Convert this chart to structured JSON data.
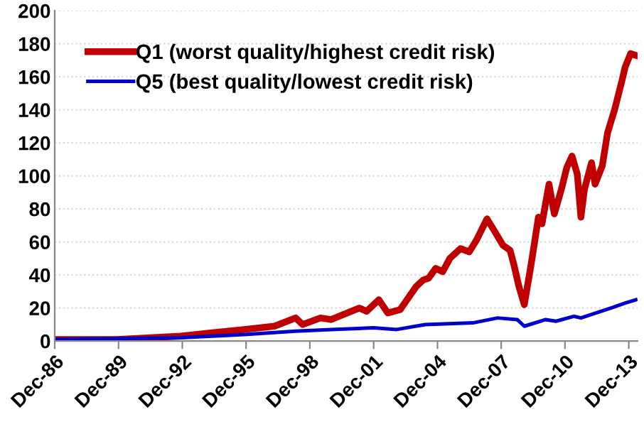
{
  "chart_data": {
    "type": "line",
    "xlim": [
      "1986-12",
      "2014-05"
    ],
    "xticks": [
      {
        "value": "1986-12",
        "label": "Dec-86"
      },
      {
        "value": "1989-12",
        "label": "Dec-89"
      },
      {
        "value": "1992-12",
        "label": "Dec-92"
      },
      {
        "value": "1995-12",
        "label": "Dec-95"
      },
      {
        "value": "1998-12",
        "label": "Dec-98"
      },
      {
        "value": "2001-12",
        "label": "Dec-01"
      },
      {
        "value": "2004-12",
        "label": "Dec-04"
      },
      {
        "value": "2007-12",
        "label": "Dec-07"
      },
      {
        "value": "2010-12",
        "label": "Dec-10"
      },
      {
        "value": "2013-12",
        "label": "Dec-13"
      }
    ],
    "ylim": [
      0,
      200
    ],
    "yticks": [
      0,
      20,
      40,
      60,
      80,
      100,
      120,
      140,
      160,
      180,
      200
    ],
    "grid": "y",
    "legend": "top left",
    "marker": "none",
    "line_style": "solid",
    "series": [
      {
        "name": "Q1 (worst quality/highest credit risk)",
        "color": "#c00000",
        "x": [
          "1986-12",
          "1989-11",
          "1992-11",
          "1994-05",
          "1995-11",
          "1997-04",
          "1998-04",
          "1998-08",
          "1999-06",
          "1999-12",
          "2001-04",
          "2001-08",
          "2002-03",
          "2002-08",
          "2003-03",
          "2003-12",
          "2004-04",
          "2004-07",
          "2004-11",
          "2005-03",
          "2005-07",
          "2006-01",
          "2006-06",
          "2006-10",
          "2007-04",
          "2007-08",
          "2008-01",
          "2008-05",
          "2008-07",
          "2008-10",
          "2009-01",
          "2009-05",
          "2009-09",
          "2009-11",
          "2010-03",
          "2010-06",
          "2010-10",
          "2011-01",
          "2011-04",
          "2011-07",
          "2011-09",
          "2011-11",
          "2012-03",
          "2012-05",
          "2012-09",
          "2012-12",
          "2013-04",
          "2013-08",
          "2013-10",
          "2014-01",
          "2014-04"
        ],
        "values": [
          1,
          1,
          3,
          5,
          7,
          9,
          14,
          10,
          14,
          13,
          20,
          18,
          25,
          17,
          19,
          33,
          37,
          38,
          44,
          42,
          50,
          56,
          54,
          61,
          74,
          67,
          58,
          55,
          47,
          33,
          22,
          47,
          75,
          71,
          95,
          77,
          92,
          105,
          112,
          101,
          75,
          92,
          108,
          95,
          106,
          126,
          140,
          157,
          166,
          174,
          173
        ]
      },
      {
        "name": "Q5 (best quality/lowest credit risk)",
        "color": "#0000cc",
        "x": [
          "1986-12",
          "1992-11",
          "1995-11",
          "1998-04",
          "1999-12",
          "2001-12",
          "2003-01",
          "2004-05",
          "2006-08",
          "2007-10",
          "2008-09",
          "2009-01",
          "2010-01",
          "2010-07",
          "2011-05",
          "2011-09",
          "2013-02",
          "2013-10",
          "2014-04"
        ],
        "values": [
          1,
          2,
          4,
          6,
          7,
          8,
          7,
          10,
          11,
          14,
          13,
          9,
          13,
          12,
          15,
          14,
          20,
          23,
          25
        ]
      }
    ]
  }
}
